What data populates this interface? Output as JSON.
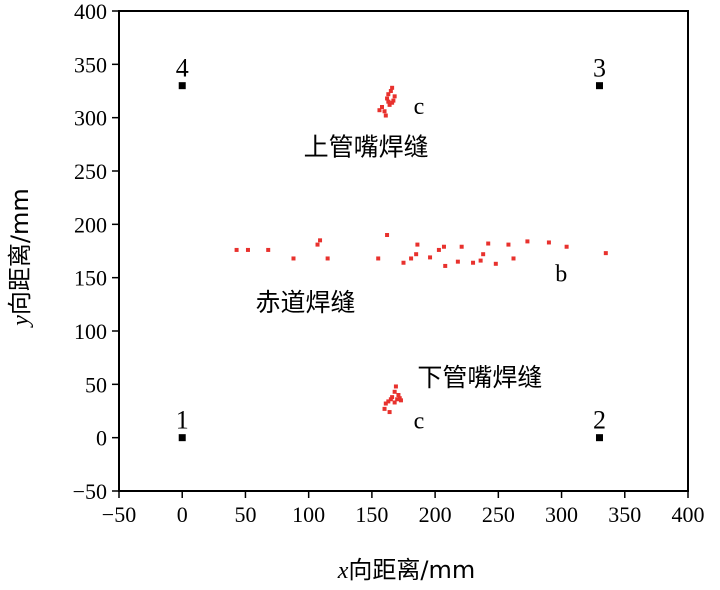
{
  "chart_data": {
    "type": "scatter",
    "xlabel_var": "x",
    "xlabel_rest": "向距离/mm",
    "ylabel_var": "y",
    "ylabel_rest": "向距离/mm",
    "xlim": [
      -50,
      400
    ],
    "ylim": [
      -50,
      400
    ],
    "xticks": [
      "−50",
      "0",
      "50",
      "100",
      "150",
      "200",
      "250",
      "300",
      "350",
      "400"
    ],
    "xtick_values": [
      -50,
      0,
      50,
      100,
      150,
      200,
      250,
      300,
      350,
      400
    ],
    "yticks": [
      "400",
      "350",
      "300",
      "250",
      "200",
      "150",
      "100",
      "50",
      "0",
      "−50"
    ],
    "ytick_values": [
      400,
      350,
      300,
      250,
      200,
      150,
      100,
      50,
      0,
      -50
    ],
    "marker_color": "#e8312d",
    "corner_color": "#000000",
    "corner_points": [
      {
        "label": "1",
        "x": 0,
        "y": 0
      },
      {
        "label": "2",
        "x": 330,
        "y": 0
      },
      {
        "label": "3",
        "x": 330,
        "y": 330
      },
      {
        "label": "4",
        "x": 0,
        "y": 330
      }
    ],
    "series": [
      {
        "values": [
          [
            160,
            306
          ],
          [
            162,
            318
          ],
          [
            163,
            322
          ],
          [
            164,
            312
          ],
          [
            165,
            325
          ],
          [
            166,
            328
          ],
          [
            167,
            316
          ],
          [
            168,
            320
          ],
          [
            166,
            314
          ],
          [
            158,
            310
          ],
          [
            156,
            307
          ],
          [
            161,
            302
          ],
          [
            163,
            315
          ]
        ]
      },
      {
        "values": [
          [
            43,
            176
          ],
          [
            52,
            176
          ],
          [
            68,
            176
          ],
          [
            88,
            168
          ],
          [
            107,
            181
          ],
          [
            109,
            185
          ],
          [
            115,
            168
          ],
          [
            155,
            168
          ],
          [
            162,
            190
          ],
          [
            175,
            164
          ],
          [
            181,
            168
          ],
          [
            185,
            172
          ],
          [
            186,
            181
          ],
          [
            196,
            169
          ],
          [
            203,
            176
          ],
          [
            207,
            179
          ],
          [
            208,
            161
          ],
          [
            218,
            165
          ],
          [
            221,
            179
          ],
          [
            230,
            164
          ],
          [
            236,
            166
          ],
          [
            238,
            172
          ],
          [
            242,
            182
          ],
          [
            248,
            163
          ],
          [
            258,
            181
          ],
          [
            262,
            168
          ],
          [
            273,
            184
          ],
          [
            290,
            183
          ],
          [
            304,
            179
          ],
          [
            335,
            173
          ]
        ]
      },
      {
        "values": [
          [
            160,
            27
          ],
          [
            163,
            34
          ],
          [
            164,
            24
          ],
          [
            166,
            38
          ],
          [
            168,
            43
          ],
          [
            169,
            48
          ],
          [
            170,
            36
          ],
          [
            171,
            40
          ],
          [
            172,
            37
          ],
          [
            165,
            36
          ],
          [
            161,
            32
          ],
          [
            168,
            33
          ],
          [
            173,
            35
          ]
        ]
      }
    ],
    "annotations": [
      {
        "text": "上管嘴焊缝",
        "x": 96,
        "y": 273
      },
      {
        "text": "赤道焊缝",
        "x": 58,
        "y": 127
      },
      {
        "text": "下管嘴焊缝",
        "x": 186,
        "y": 57
      },
      {
        "text": "c",
        "x": 183,
        "y": 312
      },
      {
        "text": "b",
        "x": 295,
        "y": 155
      },
      {
        "text": "c",
        "x": 183,
        "y": 17
      }
    ]
  }
}
